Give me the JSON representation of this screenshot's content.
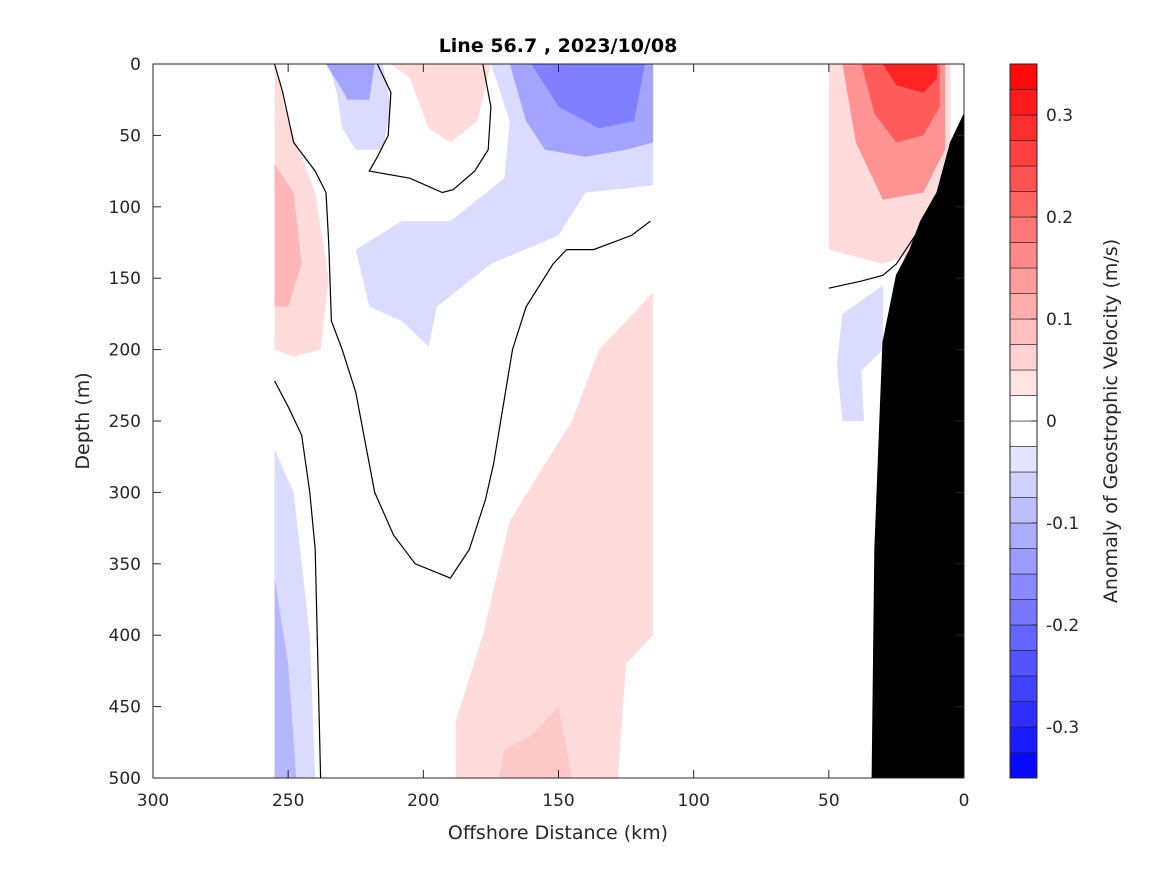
{
  "chart_data": {
    "type": "heatmap",
    "title": "Line 56.7 , 2023/10/08",
    "xlabel": "Offshore Distance (km)",
    "ylabel": "Depth (m)",
    "xlim": [
      300,
      0
    ],
    "ylim": [
      0,
      500
    ],
    "x_reversed": true,
    "y_reversed": true,
    "x_ticks": [
      300,
      250,
      200,
      150,
      100,
      50,
      0
    ],
    "y_ticks": [
      0,
      50,
      100,
      150,
      200,
      250,
      300,
      350,
      400,
      450,
      500
    ],
    "colorbar": {
      "label": "Anomaly of Geostrophic Velocity (m/s)",
      "range": [
        -0.35,
        0.35
      ],
      "step": 0.025,
      "ticks": [
        -0.3,
        -0.2,
        -0.1,
        0,
        0.1,
        0.2,
        0.3
      ],
      "tick_labels": [
        "-0.3",
        "-0.2",
        "-0.1",
        "0",
        "0.1",
        "0.2",
        "0.3"
      ],
      "negative_color": "#0000ff",
      "positive_color": "#ff0000",
      "zero_color": "#ffffff"
    },
    "features": [
      {
        "kind": "filled",
        "value": -0.05,
        "points": [
          [
            235,
            0
          ],
          [
            232,
            20
          ],
          [
            230,
            45
          ],
          [
            225,
            60
          ],
          [
            215,
            60
          ],
          [
            212,
            30
          ],
          [
            215,
            0
          ]
        ]
      },
      {
        "kind": "filled",
        "value": -0.125,
        "points": [
          [
            236,
            0
          ],
          [
            231,
            15
          ],
          [
            228,
            25
          ],
          [
            220,
            25
          ],
          [
            218,
            0
          ]
        ]
      },
      {
        "kind": "filled",
        "value": 0.05,
        "points": [
          [
            212,
            0
          ],
          [
            205,
            10
          ],
          [
            198,
            45
          ],
          [
            190,
            55
          ],
          [
            180,
            40
          ],
          [
            175,
            0
          ]
        ]
      },
      {
        "kind": "filled",
        "value": 0.05,
        "points": [
          [
            255,
            0
          ],
          [
            250,
            40
          ],
          [
            240,
            90
          ],
          [
            235,
            150
          ],
          [
            238,
            200
          ],
          [
            248,
            205
          ],
          [
            255,
            200
          ]
        ]
      },
      {
        "kind": "filled",
        "value": 0.1,
        "points": [
          [
            255,
            70
          ],
          [
            248,
            90
          ],
          [
            245,
            140
          ],
          [
            250,
            170
          ],
          [
            255,
            170
          ]
        ]
      },
      {
        "kind": "filled",
        "value": -0.05,
        "points": [
          [
            175,
            0
          ],
          [
            168,
            40
          ],
          [
            170,
            80
          ],
          [
            190,
            110
          ],
          [
            208,
            110
          ],
          [
            225,
            130
          ],
          [
            220,
            170
          ],
          [
            208,
            180
          ],
          [
            198,
            198
          ],
          [
            195,
            170
          ],
          [
            175,
            140
          ],
          [
            150,
            120
          ],
          [
            140,
            90
          ],
          [
            115,
            85
          ],
          [
            115,
            0
          ]
        ]
      },
      {
        "kind": "filled",
        "value": -0.125,
        "points": [
          [
            168,
            0
          ],
          [
            162,
            40
          ],
          [
            155,
            60
          ],
          [
            140,
            65
          ],
          [
            125,
            60
          ],
          [
            115,
            55
          ],
          [
            115,
            0
          ]
        ]
      },
      {
        "kind": "filled",
        "value": -0.175,
        "points": [
          [
            160,
            0
          ],
          [
            150,
            30
          ],
          [
            135,
            45
          ],
          [
            122,
            40
          ],
          [
            118,
            0
          ]
        ]
      },
      {
        "kind": "filled",
        "value": 0.05,
        "points": [
          [
            115,
            160
          ],
          [
            135,
            200
          ],
          [
            145,
            250
          ],
          [
            155,
            280
          ],
          [
            168,
            320
          ],
          [
            178,
            400
          ],
          [
            188,
            460
          ],
          [
            188,
            500
          ],
          [
            128,
            500
          ],
          [
            125,
            420
          ],
          [
            115,
            400
          ]
        ]
      },
      {
        "kind": "filled",
        "value": 0.075,
        "points": [
          [
            150,
            450
          ],
          [
            160,
            470
          ],
          [
            170,
            480
          ],
          [
            172,
            500
          ],
          [
            145,
            500
          ]
        ]
      },
      {
        "kind": "filled",
        "value": -0.05,
        "points": [
          [
            255,
            270
          ],
          [
            248,
            300
          ],
          [
            242,
            400
          ],
          [
            240,
            500
          ],
          [
            255,
            500
          ]
        ]
      },
      {
        "kind": "filled",
        "value": -0.1,
        "points": [
          [
            255,
            360
          ],
          [
            250,
            420
          ],
          [
            247,
            500
          ],
          [
            255,
            500
          ]
        ]
      },
      {
        "kind": "filled",
        "value": 0.05,
        "points": [
          [
            50,
            0
          ],
          [
            50,
            130
          ],
          [
            30,
            140
          ],
          [
            15,
            130
          ],
          [
            5,
            90
          ],
          [
            5,
            0
          ]
        ]
      },
      {
        "kind": "filled",
        "value": 0.15,
        "points": [
          [
            45,
            0
          ],
          [
            40,
            55
          ],
          [
            30,
            95
          ],
          [
            15,
            90
          ],
          [
            7,
            60
          ],
          [
            7,
            0
          ]
        ]
      },
      {
        "kind": "filled",
        "value": 0.225,
        "points": [
          [
            38,
            0
          ],
          [
            33,
            35
          ],
          [
            25,
            55
          ],
          [
            15,
            50
          ],
          [
            9,
            30
          ],
          [
            9,
            0
          ]
        ]
      },
      {
        "kind": "filled",
        "value": 0.3,
        "points": [
          [
            30,
            0
          ],
          [
            25,
            15
          ],
          [
            15,
            20
          ],
          [
            10,
            10
          ],
          [
            10,
            0
          ]
        ]
      },
      {
        "kind": "filled",
        "value": -0.05,
        "points": [
          [
            30,
            155
          ],
          [
            45,
            175
          ],
          [
            47,
            210
          ],
          [
            45,
            250
          ],
          [
            37,
            250
          ],
          [
            38,
            215
          ],
          [
            30,
            200
          ]
        ]
      },
      {
        "kind": "contour",
        "value": 0,
        "points": [
          [
            255,
            0
          ],
          [
            252,
            20
          ],
          [
            248,
            55
          ],
          [
            240,
            75
          ],
          [
            236,
            90
          ],
          [
            235,
            125
          ],
          [
            234,
            180
          ],
          [
            230,
            200
          ],
          [
            225,
            230
          ],
          [
            221,
            270
          ],
          [
            218,
            300
          ],
          [
            211,
            330
          ],
          [
            203,
            350
          ],
          [
            190,
            360
          ],
          [
            183,
            340
          ],
          [
            177,
            305
          ],
          [
            174,
            280
          ],
          [
            167,
            200
          ],
          [
            162,
            170
          ],
          [
            152,
            140
          ],
          [
            147,
            130
          ],
          [
            137,
            130
          ],
          [
            123,
            120
          ],
          [
            116,
            110
          ]
        ]
      },
      {
        "kind": "contour",
        "value": 0,
        "points": [
          [
            217,
            0
          ],
          [
            212,
            20
          ],
          [
            213,
            50
          ],
          [
            217,
            65
          ],
          [
            220,
            75
          ],
          [
            205,
            80
          ],
          [
            193,
            90
          ],
          [
            189,
            88
          ],
          [
            181,
            75
          ],
          [
            176,
            60
          ],
          [
            175,
            30
          ],
          [
            178,
            0
          ]
        ]
      },
      {
        "kind": "contour",
        "value": 0,
        "points": [
          [
            255,
            222
          ],
          [
            250,
            240
          ],
          [
            245,
            260
          ],
          [
            242,
            300
          ],
          [
            240,
            340
          ],
          [
            239,
            420
          ],
          [
            238,
            500
          ]
        ]
      },
      {
        "kind": "contour",
        "value": 0,
        "points": [
          [
            50,
            157
          ],
          [
            38,
            152
          ],
          [
            30,
            148
          ],
          [
            25,
            140
          ],
          [
            18,
            120
          ],
          [
            10,
            100
          ],
          [
            5,
            90
          ]
        ]
      },
      {
        "kind": "land",
        "points": [
          [
            0,
            35
          ],
          [
            5,
            55
          ],
          [
            10,
            90
          ],
          [
            16,
            110
          ],
          [
            20,
            130
          ],
          [
            25,
            148
          ],
          [
            30,
            195
          ],
          [
            33,
            340
          ],
          [
            34,
            500
          ],
          [
            0,
            500
          ]
        ]
      }
    ],
    "data_gaps": [
      [
        300,
        255
      ],
      [
        115,
        50
      ],
      [
        5,
        0
      ]
    ]
  }
}
